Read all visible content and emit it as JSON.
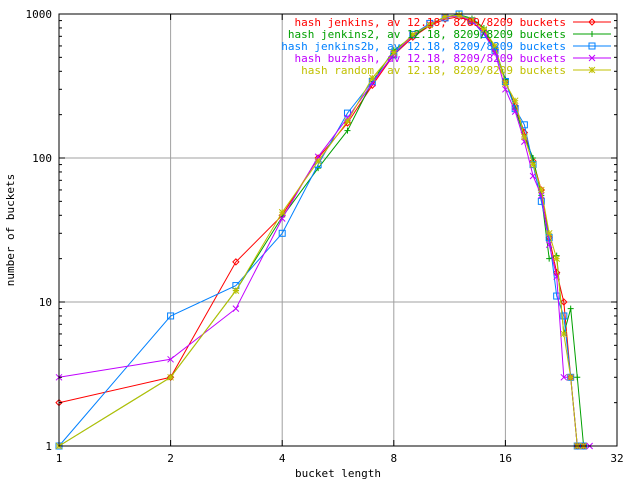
{
  "chart_data": {
    "type": "line",
    "title": "",
    "xlabel": "bucket length",
    "ylabel": "number of buckets",
    "x_scale": "log2",
    "y_scale": "log10",
    "xlim": [
      1,
      32
    ],
    "ylim": [
      1,
      1000
    ],
    "x_ticks": [
      1,
      2,
      4,
      8,
      16,
      32
    ],
    "x_tick_labels": [
      "1",
      "2",
      "4",
      "8",
      "16",
      "32"
    ],
    "y_ticks": [
      1,
      10,
      100,
      1000
    ],
    "y_tick_labels": [
      "1",
      "10",
      "100",
      "1000"
    ],
    "grid": true,
    "legend_position": "top-right",
    "series": [
      {
        "name": "hash jenkins, av 12.18, 8209/8209 buckets",
        "color": "#ff0000",
        "marker": "diamond",
        "points": [
          [
            1,
            2
          ],
          [
            2,
            3
          ],
          [
            3,
            19
          ],
          [
            4,
            40
          ],
          [
            5,
            100
          ],
          [
            6,
            175
          ],
          [
            7,
            320
          ],
          [
            8,
            520
          ],
          [
            9,
            690
          ],
          [
            10,
            830
          ],
          [
            11,
            920
          ],
          [
            12,
            960
          ],
          [
            13,
            880
          ],
          [
            14,
            760
          ],
          [
            15,
            560
          ],
          [
            16,
            340
          ],
          [
            17,
            230
          ],
          [
            18,
            150
          ],
          [
            19,
            95
          ],
          [
            20,
            60
          ],
          [
            21,
            28
          ],
          [
            22,
            16
          ],
          [
            23,
            10
          ],
          [
            24,
            3
          ],
          [
            25,
            1
          ],
          [
            26,
            1
          ]
        ]
      },
      {
        "name": "hash jenkins2, av 12.18, 8209/8209 buckets",
        "color": "#00a000",
        "marker": "plus",
        "points": [
          [
            1,
            1
          ],
          [
            2,
            3
          ],
          [
            3,
            12
          ],
          [
            4,
            39
          ],
          [
            5,
            85
          ],
          [
            6,
            155
          ],
          [
            7,
            340
          ],
          [
            8,
            560
          ],
          [
            9,
            700
          ],
          [
            10,
            840
          ],
          [
            11,
            960
          ],
          [
            12,
            990
          ],
          [
            13,
            930
          ],
          [
            14,
            800
          ],
          [
            15,
            580
          ],
          [
            16,
            350
          ],
          [
            17,
            220
          ],
          [
            18,
            140
          ],
          [
            19,
            100
          ],
          [
            20,
            55
          ],
          [
            21,
            20
          ],
          [
            22,
            21
          ],
          [
            23,
            6
          ],
          [
            24,
            9
          ],
          [
            25,
            3
          ],
          [
            26,
            1
          ]
        ]
      },
      {
        "name": "hash jenkins2b, av 12.18, 8209/8209 buckets",
        "color": "#0080ff",
        "marker": "square",
        "points": [
          [
            1,
            1
          ],
          [
            2,
            8
          ],
          [
            3,
            13
          ],
          [
            4,
            30
          ],
          [
            5,
            90
          ],
          [
            6,
            205
          ],
          [
            7,
            340
          ],
          [
            8,
            520
          ],
          [
            9,
            720
          ],
          [
            10,
            860
          ],
          [
            11,
            940
          ],
          [
            12,
            1000
          ],
          [
            13,
            900
          ],
          [
            14,
            720
          ],
          [
            15,
            560
          ],
          [
            16,
            340
          ],
          [
            17,
            220
          ],
          [
            18,
            170
          ],
          [
            19,
            90
          ],
          [
            20,
            50
          ],
          [
            21,
            28
          ],
          [
            22,
            11
          ],
          [
            23,
            8
          ],
          [
            24,
            3
          ],
          [
            25,
            1
          ],
          [
            26,
            1
          ]
        ]
      },
      {
        "name": "hash buzhash, av 12.18, 8209/8209 buckets",
        "color": "#c000ff",
        "marker": "cross",
        "points": [
          [
            1,
            3
          ],
          [
            2,
            4
          ],
          [
            3,
            9
          ],
          [
            4,
            38
          ],
          [
            5,
            102
          ],
          [
            6,
            190
          ],
          [
            7,
            330
          ],
          [
            8,
            530
          ],
          [
            9,
            710
          ],
          [
            10,
            850
          ],
          [
            11,
            950
          ],
          [
            12,
            970
          ],
          [
            13,
            890
          ],
          [
            14,
            740
          ],
          [
            15,
            540
          ],
          [
            16,
            300
          ],
          [
            17,
            210
          ],
          [
            18,
            130
          ],
          [
            19,
            75
          ],
          [
            20,
            55
          ],
          [
            21,
            25
          ],
          [
            22,
            15
          ],
          [
            23,
            3
          ],
          [
            24,
            3
          ],
          [
            25,
            1
          ],
          [
            26,
            1
          ],
          [
            27,
            1
          ]
        ]
      },
      {
        "name": "hash random, av 12.18, 8209/8209 buckets",
        "color": "#c0c000",
        "marker": "star",
        "points": [
          [
            1,
            1
          ],
          [
            2,
            3
          ],
          [
            3,
            12
          ],
          [
            4,
            42
          ],
          [
            5,
            95
          ],
          [
            6,
            180
          ],
          [
            7,
            360
          ],
          [
            8,
            540
          ],
          [
            9,
            720
          ],
          [
            10,
            840
          ],
          [
            11,
            960
          ],
          [
            12,
            980
          ],
          [
            13,
            910
          ],
          [
            14,
            780
          ],
          [
            15,
            600
          ],
          [
            16,
            330
          ],
          [
            17,
            250
          ],
          [
            18,
            140
          ],
          [
            19,
            90
          ],
          [
            20,
            60
          ],
          [
            21,
            30
          ],
          [
            22,
            20
          ],
          [
            23,
            6
          ],
          [
            24,
            3
          ],
          [
            25,
            1
          ],
          [
            26,
            1
          ]
        ]
      }
    ]
  }
}
